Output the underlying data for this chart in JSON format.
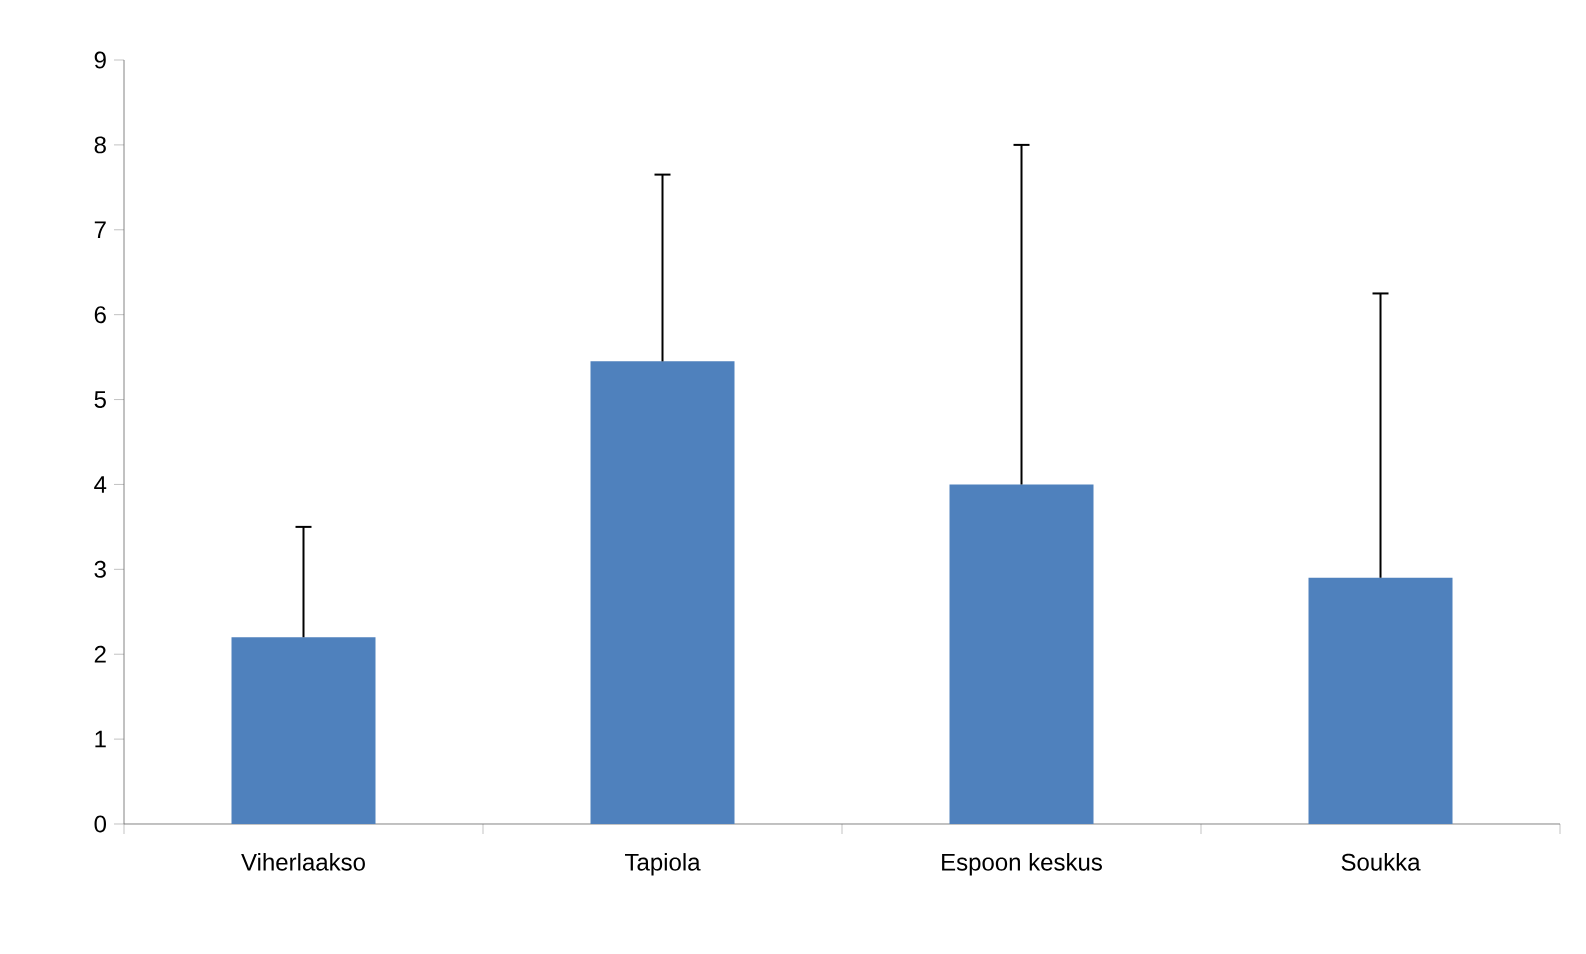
{
  "chart_data": {
    "type": "bar",
    "categories": [
      "Viherlaakso",
      "Tapiola",
      "Espoon keskus",
      "Soukka"
    ],
    "values": [
      2.2,
      5.45,
      4.0,
      2.9
    ],
    "errors": [
      [
        2.2,
        3.5
      ],
      [
        5.45,
        7.65
      ],
      [
        4.0,
        8.0
      ],
      [
        2.9,
        6.25
      ]
    ],
    "color": "#4f81bd",
    "ylim": [
      0,
      9
    ],
    "yticks": [
      0,
      1,
      2,
      3,
      4,
      5,
      6,
      7,
      8,
      9
    ],
    "grid": false
  }
}
